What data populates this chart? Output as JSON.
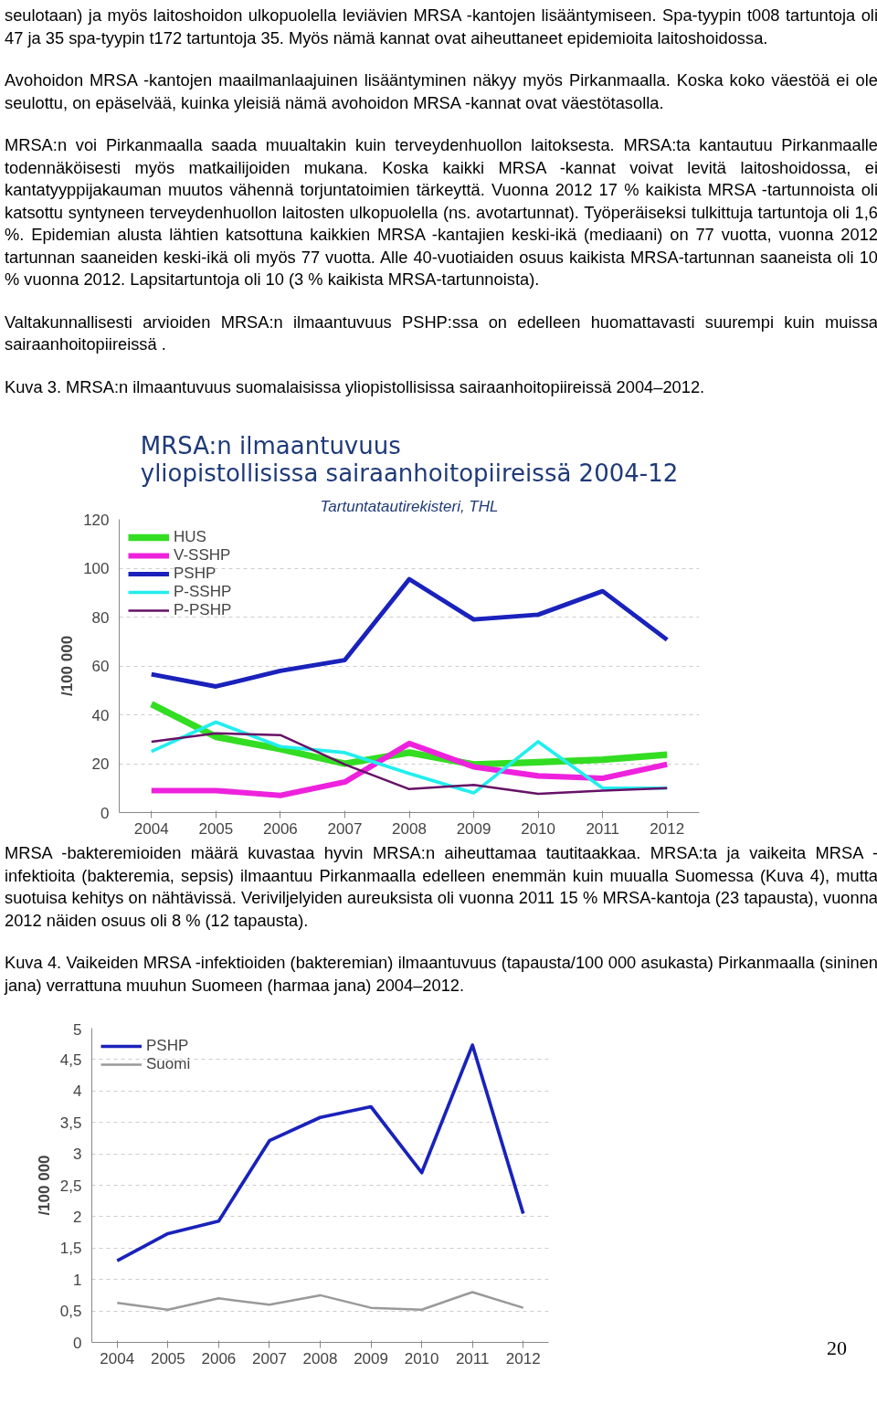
{
  "chart_data": [
    {
      "type": "other",
      "annotations": [
        "seulotaan) ja myös laitoshoidon ulkopuolella leviävien MRSA -kantojen lisääntymiseen. Spa-tyypin t008 tartuntoja oli 47 ja 35 spa-tyypin t172 tartuntoja 35. Myös nämä kannat ovat aiheuttaneet epidemioita laitoshoidossa.",
        "Avohoidon MRSA -kantojen maailmanlaajuinen lisääntyminen näkyy myös Pirkanmaalla. Koska koko väestöä ei ole seulottu, on epäselvää, kuinka yleisiä nämä avohoidon MRSA -kannat ovat väestötasolla.",
        "MRSA:n voi Pirkanmaalla saada muualtakin kuin terveydenhuollon laitoksesta. MRSA:ta kantautuu Pirkanmaalle todennäköisesti myös matkailijoiden mukana. Koska kaikki MRSA -kannat voivat levitä laitoshoidossa, ei kantatyyppijakauman muutos vähennä torjuntatoimien tärkeyttä. Vuonna 2012 17 % kaikista MRSA -tartunnoista oli katsottu syntyneen terveydenhuollon laitosten ulkopuolella (ns. avotartunnat). Työperäiseksi tulkittuja tartuntoja oli 1,6 %. Epidemian alusta lähtien katsottuna kaikkien MRSA -kantajien keski-ikä (mediaani) on 77 vuotta, vuonna 2012 tartunnan saaneiden keski-ikä oli myös 77 vuotta. Alle 40-vuotiaiden osuus kaikista MRSA-tartunnan saaneista oli 10 % vuonna 2012. Lapsitartuntoja oli 10 (3 % kaikista MRSA-tartunnoista).",
        "Valtakunnallisesti arvioiden MRSA:n ilmaantuvuus PSHP:ssa on edelleen huomattavasti suurempi kuin muissa sairaanhoitopiireissä .",
        "Kuva 3. MRSA:n ilmaantuvuus suomalaisissa yliopistollisissa sairaanhoitopiireissä 2004–2012."
      ]
    },
    {
      "type": "line",
      "title": "MRSA:n ilmaantuvuus yliopistollisissa sairaanhoitopiireissä 2004-12",
      "subtitle": "Tartuntatautirekisteri, THL",
      "ylabel": "/100 000",
      "categories": [
        "2004",
        "2005",
        "2006",
        "2007",
        "2008",
        "2009",
        "2010",
        "2011",
        "2012"
      ],
      "ylim": [
        0,
        120
      ],
      "yticks": [
        0,
        20,
        40,
        60,
        80,
        100,
        120
      ],
      "grid": "y",
      "legend": "top left",
      "marker": "none",
      "line_style": "solid",
      "series": [
        {
          "name": "HUS",
          "color": "#33dd22",
          "values": [
            44.4,
            31,
            26,
            20,
            24.5,
            19.7,
            20.6,
            21.6,
            23.7
          ]
        },
        {
          "name": "V-SSHP",
          "color": "#ee22dd",
          "values": [
            9,
            9,
            7,
            12.5,
            28.3,
            18.7,
            15,
            14,
            19.7
          ]
        },
        {
          "name": "PSHP",
          "color": "#1a22bb",
          "values": [
            56.6,
            51.6,
            58,
            62.4,
            95.5,
            79,
            81,
            90.6,
            70.7
          ]
        },
        {
          "name": "P-SSHP",
          "color": "#22eeee",
          "values": [
            25,
            37,
            27,
            24.5,
            16,
            8,
            29,
            10,
            10
          ]
        },
        {
          "name": "P-PSHP",
          "color": "#661166",
          "values": [
            29,
            32.4,
            31.7,
            19.7,
            9.6,
            11.3,
            7.7,
            9,
            10
          ]
        }
      ]
    },
    {
      "type": "other",
      "annotations": [
        "MRSA -bakteremioiden määrä kuvastaa hyvin MRSA:n aiheuttamaa tautitaakkaa. MRSA:ta ja vaikeita MRSA -infektioita (bakteremia, sepsis) ilmaantuu Pirkanmaalla edelleen enemmän kuin muualla Suomessa (Kuva 4), mutta suotuisa kehitys on nähtävissä. Veriviljelyiden aureuksista oli vuonna 2011 15 % MRSA-kantoja (23 tapausta), vuonna 2012 näiden osuus oli 8 % (12 tapausta).",
        "Kuva 4. Vaikeiden MRSA -infektioiden (bakteremian) ilmaantuvuus (tapausta/100 000 asukasta) Pirkanmaalla (sininen jana) verrattuna muuhun Suomeen (harmaa jana) 2004–2012."
      ]
    },
    {
      "type": "line",
      "ylabel": "/100 000",
      "annotations": [
        "20"
      ],
      "categories": [
        "2004",
        "2005",
        "2006",
        "2007",
        "2008",
        "2009",
        "2010",
        "2011",
        "2012"
      ],
      "ylim": [
        0,
        5
      ],
      "yticks": [
        0,
        {
          "value": 0.5,
          "label": "0,5"
        },
        1,
        {
          "value": 1.5,
          "label": "1,5"
        },
        2,
        {
          "value": 2.5,
          "label": "2,5"
        },
        3,
        {
          "value": 3.5,
          "label": "3,5"
        },
        4,
        {
          "value": 4.5,
          "label": "4,5"
        },
        5
      ],
      "grid": "y",
      "legend": "top left",
      "marker": "none",
      "line_style": "solid",
      "series": [
        {
          "name": "PSHP",
          "color": "#1a22bb",
          "values": [
            1.3,
            1.73,
            1.93,
            3.21,
            3.58,
            3.75,
            2.7,
            4.73,
            2.05
          ]
        },
        {
          "name": "Suomi",
          "color": "#999999",
          "values": [
            0.63,
            0.52,
            0.7,
            0.6,
            0.75,
            0.55,
            0.52,
            0.8,
            0.55
          ]
        }
      ]
    }
  ]
}
